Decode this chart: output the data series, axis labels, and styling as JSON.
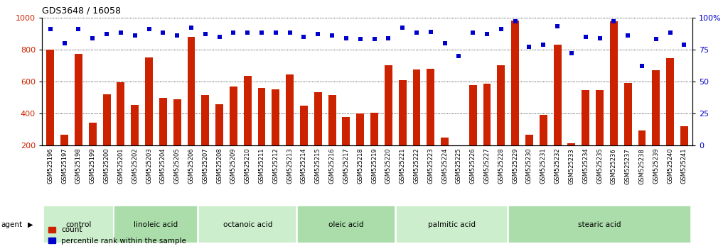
{
  "title": "GDS3648 / 16058",
  "samples": [
    "GSM525196",
    "GSM525197",
    "GSM525198",
    "GSM525199",
    "GSM525200",
    "GSM525201",
    "GSM525202",
    "GSM525203",
    "GSM525204",
    "GSM525205",
    "GSM525206",
    "GSM525207",
    "GSM525208",
    "GSM525209",
    "GSM525210",
    "GSM525211",
    "GSM525212",
    "GSM525213",
    "GSM525214",
    "GSM525215",
    "GSM525216",
    "GSM525217",
    "GSM525218",
    "GSM525219",
    "GSM525220",
    "GSM525221",
    "GSM525222",
    "GSM525223",
    "GSM525224",
    "GSM525225",
    "GSM525226",
    "GSM525227",
    "GSM525228",
    "GSM525229",
    "GSM525230",
    "GSM525231",
    "GSM525232",
    "GSM525233",
    "GSM525234",
    "GSM525235",
    "GSM525236",
    "GSM525237",
    "GSM525238",
    "GSM525239",
    "GSM525240",
    "GSM525241"
  ],
  "counts": [
    800,
    270,
    775,
    345,
    520,
    595,
    455,
    750,
    500,
    490,
    880,
    515,
    460,
    570,
    635,
    560,
    550,
    645,
    450,
    535,
    515,
    380,
    400,
    405,
    700,
    610,
    675,
    680,
    250,
    200,
    580,
    585,
    700,
    980,
    270,
    390,
    830,
    215,
    545,
    545,
    975,
    590,
    295,
    670,
    745,
    320
  ],
  "percentiles": [
    91,
    80,
    91,
    84,
    87,
    88,
    86,
    91,
    88,
    86,
    92,
    87,
    85,
    88,
    88,
    88,
    88,
    88,
    85,
    87,
    86,
    84,
    83,
    83,
    84,
    92,
    88,
    89,
    80,
    70,
    88,
    87,
    91,
    97,
    77,
    79,
    93,
    72,
    85,
    84,
    97,
    86,
    62,
    83,
    88,
    79
  ],
  "groups": [
    {
      "label": "control",
      "start": 0,
      "end": 5
    },
    {
      "label": "linoleic acid",
      "start": 5,
      "end": 11
    },
    {
      "label": "octanoic acid",
      "start": 11,
      "end": 18
    },
    {
      "label": "oleic acid",
      "start": 18,
      "end": 25
    },
    {
      "label": "palmitic acid",
      "start": 25,
      "end": 33
    },
    {
      "label": "stearic acid",
      "start": 33,
      "end": 46
    }
  ],
  "bar_color": "#cc2200",
  "dot_color": "#0000cc",
  "bar_width": 0.55,
  "ylim_left": [
    200,
    1000
  ],
  "ylim_right": [
    0,
    100
  ],
  "ylabel_left_ticks": [
    200,
    400,
    600,
    800,
    1000
  ],
  "ylabel_right_ticks": [
    0,
    25,
    50,
    75,
    100
  ],
  "group_colors": [
    "#cceecc",
    "#aaddaa"
  ],
  "title_fontsize": 9,
  "tick_fontsize": 6,
  "group_label_fontsize": 7.5
}
